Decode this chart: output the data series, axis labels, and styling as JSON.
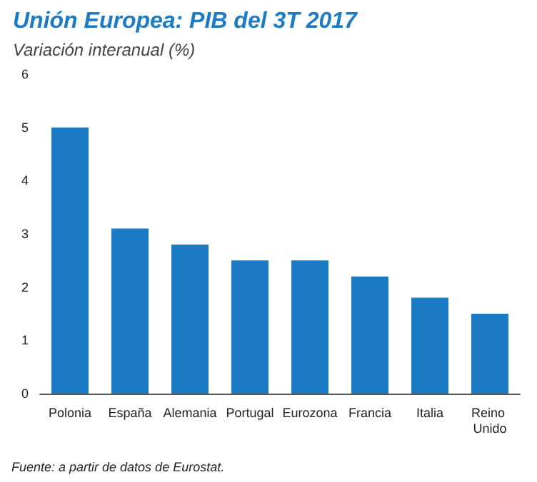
{
  "chart_data": {
    "type": "bar",
    "title": "Unión Europea: PIB del 3T 2017",
    "subtitle": "Variación interanual (%)",
    "categories": [
      "Polonia",
      "España",
      "Alemania",
      "Portugal",
      "Eurozona",
      "Francia",
      "Italia",
      "Reino Unido"
    ],
    "values": [
      5.0,
      3.1,
      2.8,
      2.5,
      2.5,
      2.2,
      1.8,
      1.5
    ],
    "color": "#1b7bc4",
    "ylim": [
      0,
      6
    ],
    "yticks": [
      0,
      1,
      2,
      3,
      4,
      5,
      6
    ],
    "grid": false,
    "annotations": [
      "Fuente: a partir de datos de Eurostat."
    ]
  }
}
